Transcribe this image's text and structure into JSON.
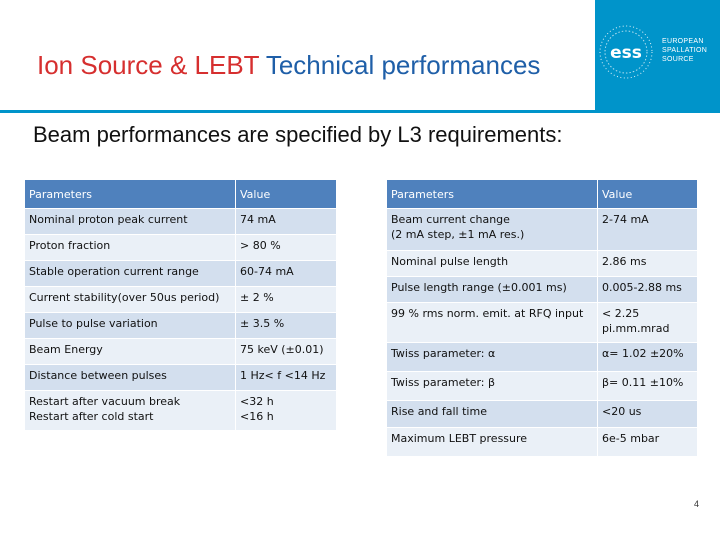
{
  "header": {
    "title_red": "Ion Source & LEBT",
    "title_rest": " Technical performances",
    "logo": {
      "mark": "ess",
      "line1": "EUROPEAN",
      "line2": "SPALLATION",
      "line3": "SOURCE"
    }
  },
  "subtitle": "Beam performances are specified by L3 requirements:",
  "left_table": {
    "headers": [
      "Parameters",
      "Value"
    ],
    "rows": [
      [
        "Nominal proton peak current",
        "74 mA"
      ],
      [
        "Proton fraction",
        "> 80 %"
      ],
      [
        "Stable operation current range",
        "60-74 mA"
      ],
      [
        "Current stability(over 50us period)",
        "± 2 %"
      ],
      [
        "Pulse to pulse variation",
        "± 3.5 %"
      ],
      [
        "Beam Energy",
        "75 keV (±0.01)"
      ],
      [
        "Distance between pulses",
        "1 Hz< f <14 Hz"
      ],
      [
        "Restart after vacuum break\nRestart after cold start",
        "<32 h\n<16 h"
      ]
    ]
  },
  "right_table": {
    "headers": [
      "Parameters",
      "Value"
    ],
    "rows": [
      [
        "Beam current change\n(2 mA step, ±1 mA res.)",
        "2-74 mA"
      ],
      [
        "Nominal pulse length",
        "2.86 ms"
      ],
      [
        "Pulse length range (±0.001 ms)",
        "0.005-2.88 ms"
      ],
      [
        "99 % rms norm. emit. at RFQ input",
        "< 2.25\npi.mm.mrad"
      ],
      [
        "Twiss parameter: α",
        "α= 1.02 ±20%"
      ],
      [
        "Twiss parameter: β",
        "β= 0.11 ±10%"
      ],
      [
        "Rise and fall time",
        "<20 us"
      ],
      [
        "Maximum LEBT pressure",
        "6e-5 mbar"
      ]
    ]
  },
  "page_number": "4",
  "colors": {
    "header_bg": "#0094ca",
    "title_red": "#d62f2f",
    "title_blue": "#1f5fa8",
    "table_header": "#4f81bd",
    "row_dark": "#d3dfee",
    "row_light": "#eaf0f7"
  }
}
